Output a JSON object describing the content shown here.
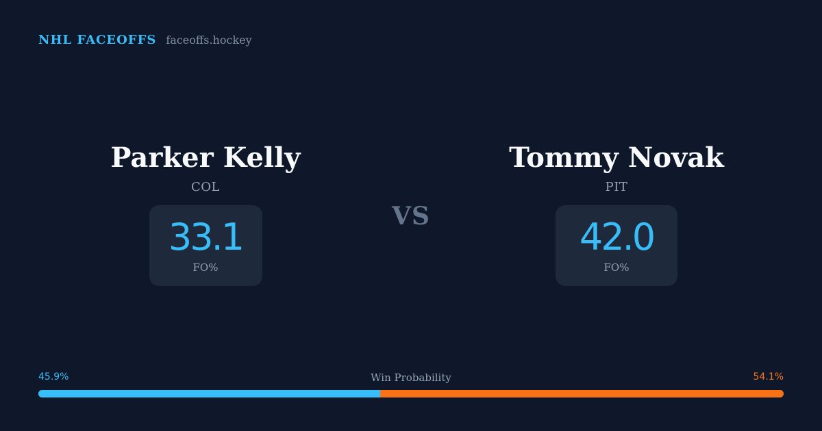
{
  "brand": {
    "name": "NHL FACEOFFS",
    "domain": "faceoffs.hockey"
  },
  "players": [
    {
      "name": "Parker Kelly",
      "team": "COL",
      "stat_value": "33.1",
      "stat_label": "FO%"
    },
    {
      "name": "Tommy Novak",
      "team": "PIT",
      "stat_value": "42.0",
      "stat_label": "FO%"
    }
  ],
  "versus_label": "VS",
  "win_probability": {
    "title": "Win Probability",
    "left_label": "45.9%",
    "right_label": "54.1%",
    "left_value": 45.9,
    "right_value": 54.1
  },
  "colors": {
    "background": "#0f172a",
    "accent_left": "#38bdf8",
    "accent_right": "#f97316",
    "card": "#1e293b"
  }
}
